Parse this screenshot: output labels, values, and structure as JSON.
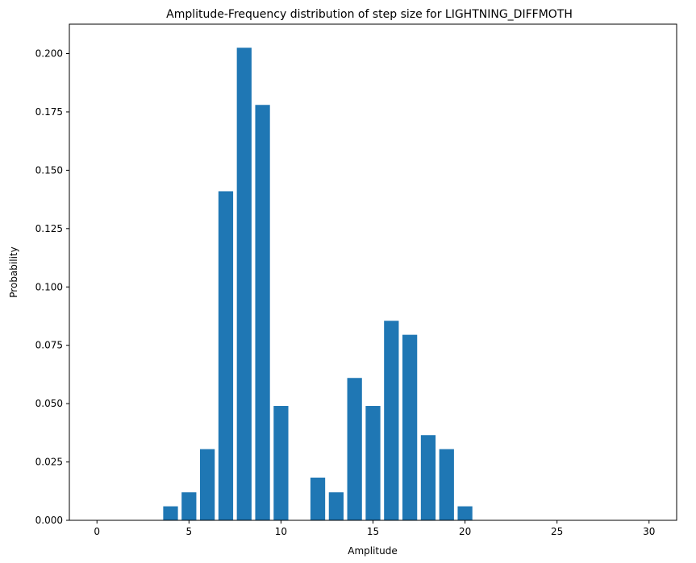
{
  "chart_data": {
    "type": "bar",
    "title": "Amplitude-Frequency distribution of step size for LIGHTNING_DIFFMOTH",
    "xlabel": "Amplitude",
    "ylabel": "Probability",
    "x": [
      0,
      1,
      2,
      3,
      4,
      5,
      6,
      7,
      8,
      9,
      10,
      11,
      12,
      13,
      14,
      15,
      16,
      17,
      18,
      19,
      20,
      21,
      22,
      23,
      24,
      25,
      26,
      27,
      28,
      29,
      30
    ],
    "values": [
      0,
      0,
      0,
      0,
      0.006,
      0.012,
      0.0305,
      0.141,
      0.2025,
      0.178,
      0.049,
      0,
      0.0183,
      0.012,
      0.061,
      0.049,
      0.0855,
      0.0795,
      0.0365,
      0.0305,
      0.006,
      0,
      0,
      0,
      0,
      0,
      0,
      0,
      0,
      0,
      0
    ],
    "xlim": [
      -1.5,
      31.5
    ],
    "ylim": [
      0,
      0.2126
    ],
    "xticks": [
      0,
      5,
      10,
      15,
      20,
      25,
      30
    ],
    "xtick_labels": [
      "0",
      "5",
      "10",
      "15",
      "20",
      "25",
      "30"
    ],
    "yticks": [
      0,
      0.025,
      0.05,
      0.075,
      0.1,
      0.125,
      0.15,
      0.175,
      0.2
    ],
    "ytick_labels": [
      "0.000",
      "0.025",
      "0.050",
      "0.075",
      "0.100",
      "0.125",
      "0.150",
      "0.175",
      "0.200"
    ],
    "bar_color": "#1f77b4",
    "bar_width": 0.8,
    "grid": false,
    "legend": false
  }
}
